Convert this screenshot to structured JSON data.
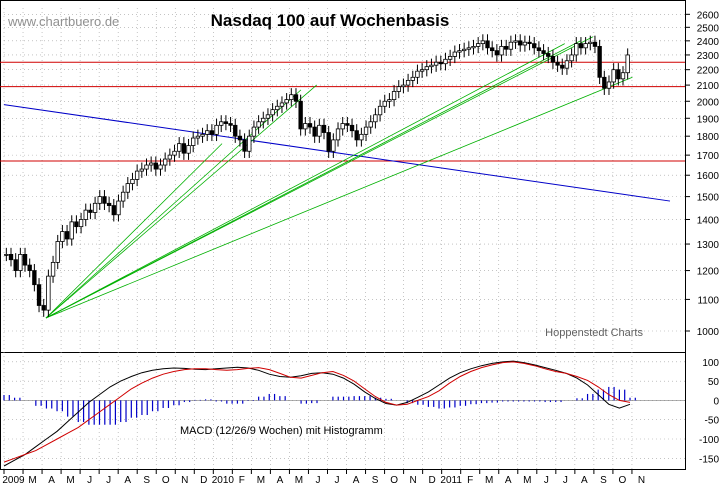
{
  "watermark": "www.chartbuero.de",
  "source_note": "Hoppenstedt Charts",
  "macd_label": "MACD (12/26/9 Wochen) mit Histogramm",
  "colors": {
    "candle": "#000000",
    "support_lines": "#d00000",
    "fan_lines": "#00b000",
    "trend_line": "#0000c8",
    "macd_line": "#000000",
    "signal_line": "#d00000",
    "histogram": "#0000c8",
    "grid": "#a0a0a0"
  },
  "chart_data": [
    {
      "type": "candlestick",
      "title": "Nasdaq 100 auf Wochenbasis",
      "frequency": "weekly",
      "ylim": [
        950,
        2650
      ],
      "yscale": "log",
      "y_ticks": [
        1000,
        1100,
        1200,
        1300,
        1400,
        1500,
        1600,
        1700,
        1800,
        1900,
        2000,
        2100,
        2200,
        2300,
        2400,
        2500,
        2600
      ],
      "x_ticks": [
        "2009",
        "M",
        "A",
        "M",
        "J",
        "J",
        "A",
        "S",
        "O",
        "N",
        "D",
        "2010",
        "F",
        "M",
        "A",
        "M",
        "J",
        "J",
        "A",
        "S",
        "O",
        "N",
        "D",
        "2011",
        "F",
        "M",
        "A",
        "M",
        "J",
        "J",
        "A",
        "S",
        "O",
        "N"
      ],
      "closes": [
        1260,
        1240,
        1200,
        1260,
        1220,
        1200,
        1150,
        1080,
        1065,
        1180,
        1230,
        1310,
        1350,
        1320,
        1390,
        1370,
        1400,
        1440,
        1430,
        1470,
        1500,
        1470,
        1460,
        1420,
        1480,
        1520,
        1560,
        1580,
        1620,
        1630,
        1650,
        1660,
        1630,
        1650,
        1680,
        1700,
        1720,
        1760,
        1710,
        1750,
        1790,
        1800,
        1810,
        1830,
        1810,
        1860,
        1880,
        1870,
        1860,
        1800,
        1780,
        1720,
        1800,
        1850,
        1880,
        1900,
        1920,
        1950,
        1970,
        1990,
        2010,
        2040,
        2000,
        1840,
        1870,
        1850,
        1800,
        1860,
        1820,
        1720,
        1780,
        1840,
        1870,
        1860,
        1830,
        1780,
        1810,
        1850,
        1880,
        1920,
        1970,
        2000,
        2010,
        2060,
        2090,
        2100,
        2130,
        2150,
        2190,
        2200,
        2220,
        2230,
        2250,
        2240,
        2270,
        2290,
        2320,
        2330,
        2340,
        2350,
        2360,
        2380,
        2400,
        2350,
        2330,
        2300,
        2360,
        2340,
        2390,
        2400,
        2370,
        2390,
        2380,
        2350,
        2330,
        2310,
        2290,
        2250,
        2230,
        2210,
        2260,
        2300,
        2380,
        2350,
        2380,
        2390,
        2360,
        2150,
        2080,
        2120,
        2200,
        2140,
        2180,
        2300
      ],
      "support_lines": [
        2250,
        2090,
        1670
      ],
      "trend_line": [
        {
          "date": "2009-01-01",
          "value": 1980
        },
        {
          "date": "2011-11-30",
          "value": 1480
        }
      ],
      "fan_lines": [
        {
          "from": {
            "date": "2009-03-09",
            "value": 1040
          },
          "to": {
            "date": "2009-12-15",
            "value": 1760
          }
        },
        {
          "from": {
            "date": "2009-03-09",
            "value": 1040
          },
          "to": {
            "date": "2010-04-20",
            "value": 2070
          }
        },
        {
          "from": {
            "date": "2009-03-09",
            "value": 1040
          },
          "to": {
            "date": "2010-05-15",
            "value": 2100
          }
        },
        {
          "from": {
            "date": "2009-03-09",
            "value": 1040
          },
          "to": {
            "date": "2011-06-15",
            "value": 2380
          }
        },
        {
          "from": {
            "date": "2009-03-09",
            "value": 1040
          },
          "to": {
            "date": "2011-07-10",
            "value": 2400
          }
        },
        {
          "from": {
            "date": "2009-03-09",
            "value": 1040
          },
          "to": {
            "date": "2011-07-30",
            "value": 2430
          }
        },
        {
          "from": {
            "date": "2009-03-09",
            "value": 1040
          },
          "to": {
            "date": "2011-10-01",
            "value": 2150
          }
        }
      ]
    },
    {
      "type": "line",
      "title": "MACD (12/26/9 Wochen) mit Histogramm",
      "ylim": [
        -170,
        110
      ],
      "y_ticks": [
        100,
        50,
        0,
        -50,
        -100,
        -150
      ],
      "series": [
        {
          "values": [
            -160,
            -150,
            -140,
            -130,
            -115,
            -100,
            -85,
            -70,
            -50,
            -30,
            -10,
            10,
            30,
            45,
            58,
            68,
            75,
            80,
            82,
            82,
            80,
            78,
            80,
            83,
            85,
            80,
            70,
            60,
            58,
            65,
            72,
            75,
            65,
            50,
            30,
            10,
            -5,
            -12,
            -10,
            0,
            10,
            25,
            45,
            62,
            75,
            85,
            92,
            98,
            100,
            96,
            90,
            82,
            75,
            70,
            62,
            52,
            35,
            15,
            0,
            -5
          ]
        },
        {
          "values": [
            -170,
            -155,
            -140,
            -120,
            -100,
            -80,
            -55,
            -30,
            -5,
            15,
            35,
            50,
            62,
            72,
            78,
            82,
            84,
            83,
            81,
            80,
            82,
            84,
            86,
            84,
            78,
            68,
            62,
            60,
            64,
            70,
            72,
            68,
            58,
            42,
            22,
            5,
            -8,
            -12,
            -5,
            8,
            22,
            40,
            58,
            72,
            82,
            90,
            96,
            100,
            102,
            98,
            92,
            85,
            78,
            70,
            58,
            40,
            15,
            -10,
            -20,
            -10
          ]
        }
      ]
    }
  ]
}
